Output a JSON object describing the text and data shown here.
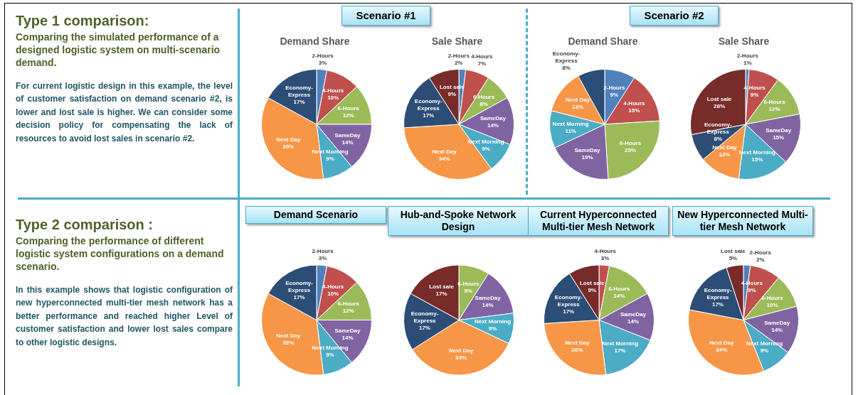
{
  "chart_data": [
    {
      "type": "other",
      "title": "Type 1 comparison:",
      "subtitle": "Comparing the simulated  performance of a designed logistic system on multi-scenario demand.",
      "annotations": [
        "For current logistic design in this example, the level of customer satisfaction on demand scenario #2, is lower and lost sale is higher. We can consider some decision policy for compensating the lack of resources to avoid lost sales in scenario #2."
      ]
    },
    {
      "type": "pie",
      "title": "Scenario #1",
      "subtitle": "Demand Share",
      "categories": [
        "2-Hours",
        "4-Hours",
        "6-Hours",
        "SameDay",
        "Next Morning",
        "Next Day",
        "Economy-Express"
      ],
      "values": [
        3,
        10,
        12,
        14,
        9,
        35,
        17
      ],
      "value_labels": [
        "3%",
        "10%",
        "12%",
        "14%",
        "9%",
        "35%",
        "17%"
      ],
      "colors": [
        "#4f81bd",
        "#c0504d",
        "#9bbb59",
        "#8064a2",
        "#4bacc6",
        "#f79646",
        "#2c4d75"
      ],
      "legend": false
    },
    {
      "type": "pie",
      "subtitle": "Sale Share",
      "categories": [
        "2-Hours",
        "4-Hours",
        "6-Hours",
        "SameDay",
        "Next Morning",
        "Next Day",
        "Economy-Express",
        "Lost sale"
      ],
      "values": [
        2,
        7,
        8,
        14,
        9,
        34,
        17,
        9
      ],
      "value_labels": [
        "2%",
        "7%",
        "8%",
        "14%",
        "9%",
        "34%",
        "17%",
        "9%"
      ],
      "colors": [
        "#4f81bd",
        "#c0504d",
        "#9bbb59",
        "#8064a2",
        "#4bacc6",
        "#f79646",
        "#2c4d75",
        "#772c2a"
      ],
      "legend": false
    },
    {
      "type": "pie",
      "title": "Scenario #2",
      "subtitle": "Demand Share",
      "categories": [
        "2-Hours",
        "4-Hours",
        "6-Hours",
        "SameDay",
        "Next Morning",
        "Next Day",
        "Economy-Express"
      ],
      "values": [
        9,
        15,
        25,
        19,
        11,
        13,
        8
      ],
      "value_labels": [
        "9%",
        "15%",
        "25%",
        "19%",
        "11%",
        "13%",
        "8%"
      ],
      "colors": [
        "#4f81bd",
        "#c0504d",
        "#9bbb59",
        "#8064a2",
        "#4bacc6",
        "#f79646",
        "#2c4d75"
      ],
      "legend": false
    },
    {
      "type": "pie",
      "subtitle": "Sale Share",
      "categories": [
        "2-Hours",
        "4-Hours",
        "6-Hours",
        "SameDay",
        "Next Morning",
        "Next Day",
        "Economy-Express",
        "Lost sale"
      ],
      "values": [
        1,
        9,
        12,
        15,
        15,
        12,
        8,
        28
      ],
      "value_labels": [
        "1%",
        "9%",
        "12%",
        "15%",
        "15%",
        "12%",
        "8%",
        "28%"
      ],
      "colors": [
        "#4f81bd",
        "#c0504d",
        "#9bbb59",
        "#8064a2",
        "#4bacc6",
        "#f79646",
        "#2c4d75",
        "#772c2a"
      ],
      "legend": false
    },
    {
      "type": "other",
      "title": "Type 2 comparison :",
      "subtitle": "Comparing the performance of different logistic system configurations on a demand scenario.",
      "annotations": [
        "In this example shows that logistic configuration of new hyperconnected multi-tier mesh network has a better performance and reached higher Level of customer satisfaction and lower lost sales compare to other logistic designs."
      ]
    },
    {
      "type": "pie",
      "title": "Demand Scenario",
      "categories": [
        "2-Hours",
        "4-Hours",
        "6-Hours",
        "SameDay",
        "Next Morning",
        "Next Day",
        "Economy-Express"
      ],
      "values": [
        3,
        10,
        12,
        14,
        9,
        35,
        17
      ],
      "value_labels": [
        "3%",
        "10%",
        "12%",
        "14%",
        "9%",
        "35%",
        "17%"
      ],
      "colors": [
        "#4f81bd",
        "#c0504d",
        "#9bbb59",
        "#8064a2",
        "#4bacc6",
        "#f79646",
        "#2c4d75"
      ],
      "legend": false
    },
    {
      "type": "pie",
      "title": "Hub-and-Spoke Network Design",
      "categories": [
        "6-Hours",
        "SameDay",
        "Next Morning",
        "Next Day",
        "Economy-Express",
        "Lost sale"
      ],
      "values": [
        9,
        14,
        9,
        34,
        17,
        17
      ],
      "value_labels": [
        "9%",
        "14%",
        "9%",
        "34%",
        "17%",
        "17%"
      ],
      "colors": [
        "#9bbb59",
        "#8064a2",
        "#4bacc6",
        "#f79646",
        "#2c4d75",
        "#772c2a"
      ],
      "legend": false
    },
    {
      "type": "pie",
      "title": "Current Hyperconnected Multi-tier Mesh Network",
      "categories": [
        "4-Hours",
        "6-Hours",
        "SameDay",
        "Next Morning",
        "Next Day",
        "Economy-Express",
        "Lost sale"
      ],
      "values": [
        3,
        14,
        14,
        17,
        26,
        17,
        9
      ],
      "value_labels": [
        "3%",
        "14%",
        "14%",
        "17%",
        "26%",
        "17%",
        "9%"
      ],
      "colors": [
        "#c0504d",
        "#9bbb59",
        "#8064a2",
        "#4bacc6",
        "#f79646",
        "#2c4d75",
        "#772c2a"
      ],
      "legend": false
    },
    {
      "type": "pie",
      "title": "New Hyperconnected Multi-tier Mesh Network",
      "categories": [
        "2-Hours",
        "4-Hours",
        "6-Hours",
        "SameDay",
        "Next Morning",
        "Next Day",
        "Economy-Express",
        "Lost sale"
      ],
      "values": [
        2,
        9,
        10,
        14,
        9,
        34,
        17,
        5
      ],
      "value_labels": [
        "2%",
        "9%",
        "10%",
        "14%",
        "9%",
        "34%",
        "17%",
        "5%"
      ],
      "colors": [
        "#4f81bd",
        "#c0504d",
        "#9bbb59",
        "#8064a2",
        "#4bacc6",
        "#f79646",
        "#2c4d75",
        "#772c2a"
      ],
      "legend": false
    }
  ]
}
